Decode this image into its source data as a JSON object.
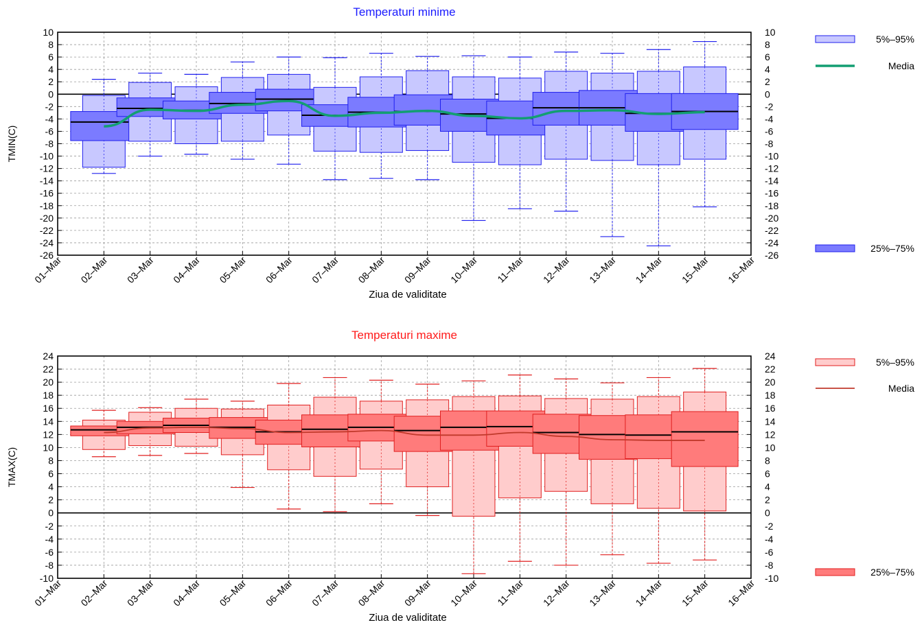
{
  "chart_data": [
    {
      "type": "box",
      "title": "Temperaturi minime",
      "title_color": "#1a1aff",
      "xlabel": "Ziua de validitate",
      "ylabel": "TMIN(C)",
      "ylim": [
        -26,
        10
      ],
      "ytick_step": 2,
      "grid": true,
      "x_tick_labels": [
        "01–Mar",
        "02–Mar",
        "03–Mar",
        "04–Mar",
        "05–Mar",
        "06–Mar",
        "07–Mar",
        "08–Mar",
        "09–Mar",
        "10–Mar",
        "11–Mar",
        "12–Mar",
        "13–Mar",
        "14–Mar",
        "15–Mar",
        "16–Mar"
      ],
      "boxes": [
        {
          "x": "02–Mar",
          "min": -12.8,
          "p5": -11.8,
          "p25": -7.5,
          "median": -4.5,
          "p75": -2.8,
          "p95": -0.2,
          "max": 2.4
        },
        {
          "x": "03–Mar",
          "min": -10.0,
          "p5": -7.6,
          "p25": -3.6,
          "median": -2.3,
          "p75": -0.6,
          "p95": 1.9,
          "max": 3.4
        },
        {
          "x": "04–Mar",
          "min": -9.7,
          "p5": -8.0,
          "p25": -4.0,
          "median": -2.6,
          "p75": -1.1,
          "p95": 1.2,
          "max": 3.2
        },
        {
          "x": "05–Mar",
          "min": -10.5,
          "p5": -7.6,
          "p25": -3.1,
          "median": -1.5,
          "p75": 0.3,
          "p95": 2.7,
          "max": 5.2
        },
        {
          "x": "06–Mar",
          "min": -11.3,
          "p5": -6.6,
          "p25": -2.7,
          "median": -0.8,
          "p75": 0.8,
          "p95": 3.2,
          "max": 6.0
        },
        {
          "x": "07–Mar",
          "min": -13.8,
          "p5": -9.2,
          "p25": -5.2,
          "median": -3.4,
          "p75": -1.7,
          "p95": 1.1,
          "max": 5.9
        },
        {
          "x": "08–Mar",
          "min": -13.6,
          "p5": -9.4,
          "p25": -5.3,
          "median": -2.9,
          "p75": -0.5,
          "p95": 2.8,
          "max": 6.6
        },
        {
          "x": "09–Mar",
          "min": -13.8,
          "p5": -9.1,
          "p25": -5.0,
          "median": -2.8,
          "p75": -0.1,
          "p95": 3.8,
          "max": 6.1
        },
        {
          "x": "10–Mar",
          "min": -20.4,
          "p5": -11.0,
          "p25": -6.0,
          "median": -3.2,
          "p75": -0.8,
          "p95": 2.8,
          "max": 6.2
        },
        {
          "x": "11–Mar",
          "min": -18.5,
          "p5": -11.4,
          "p25": -6.6,
          "median": -3.9,
          "p75": -1.1,
          "p95": 2.6,
          "max": 6.0
        },
        {
          "x": "12–Mar",
          "min": -18.9,
          "p5": -10.5,
          "p25": -5.0,
          "median": -2.2,
          "p75": 0.3,
          "p95": 3.7,
          "max": 6.8
        },
        {
          "x": "13–Mar",
          "min": -23.0,
          "p5": -10.7,
          "p25": -5.0,
          "median": -2.2,
          "p75": 0.6,
          "p95": 3.4,
          "max": 6.6
        },
        {
          "x": "14–Mar",
          "min": -24.5,
          "p5": -11.4,
          "p25": -6.0,
          "median": -3.1,
          "p75": 0.1,
          "p95": 3.7,
          "max": 7.2
        },
        {
          "x": "15–Mar",
          "min": -18.2,
          "p5": -10.5,
          "p25": -5.7,
          "median": -2.8,
          "p75": 0.1,
          "p95": 4.4,
          "max": 8.5
        }
      ],
      "mean_line": {
        "x": [
          "02–Mar",
          "03–Mar",
          "04–Mar",
          "05–Mar",
          "06–Mar",
          "07–Mar",
          "08–Mar",
          "09–Mar",
          "10–Mar",
          "11–Mar",
          "12–Mar",
          "13–Mar",
          "14–Mar",
          "15–Mar"
        ],
        "values": [
          -5.2,
          -2.5,
          -2.7,
          -1.7,
          -1.1,
          -3.5,
          -3.0,
          -2.7,
          -3.5,
          -3.9,
          -2.7,
          -2.6,
          -3.2,
          -2.9
        ]
      },
      "legend": {
        "outer": "5%–95%",
        "mean": "Media",
        "inner": "25%–75%"
      },
      "colors": {
        "inner_fill": "#7b7bff",
        "outer_fill": "#c8c8ff",
        "stroke": "#1f1fee",
        "mean": "#139e72",
        "median": "#000000"
      }
    },
    {
      "type": "box",
      "title": "Temperaturi maxime",
      "title_color": "#ff1a1a",
      "xlabel": "Ziua de validitate",
      "ylabel": "TMAX(C)",
      "ylim": [
        -10,
        24
      ],
      "ytick_step": 2,
      "grid": true,
      "x_tick_labels": [
        "01–Mar",
        "02–Mar",
        "03–Mar",
        "04–Mar",
        "05–Mar",
        "06–Mar",
        "07–Mar",
        "08–Mar",
        "09–Mar",
        "10–Mar",
        "11–Mar",
        "12–Mar",
        "13–Mar",
        "14–Mar",
        "15–Mar",
        "16–Mar"
      ],
      "boxes": [
        {
          "x": "02–Mar",
          "min": 8.6,
          "p5": 9.7,
          "p25": 11.8,
          "median": 12.7,
          "p75": 13.3,
          "p95": 14.2,
          "max": 15.7
        },
        {
          "x": "03–Mar",
          "min": 8.8,
          "p5": 10.3,
          "p25": 12.1,
          "median": 13.1,
          "p75": 14.0,
          "p95": 15.4,
          "max": 16.1
        },
        {
          "x": "04–Mar",
          "min": 9.1,
          "p5": 10.2,
          "p25": 12.3,
          "median": 13.4,
          "p75": 14.5,
          "p95": 16.0,
          "max": 17.4
        },
        {
          "x": "05–Mar",
          "min": 3.9,
          "p5": 8.9,
          "p25": 11.4,
          "median": 13.1,
          "p75": 14.6,
          "p95": 15.9,
          "max": 17.1
        },
        {
          "x": "06–Mar",
          "min": 0.6,
          "p5": 6.6,
          "p25": 10.5,
          "median": 12.4,
          "p75": 14.2,
          "p95": 16.5,
          "max": 19.8
        },
        {
          "x": "07–Mar",
          "min": 0.2,
          "p5": 5.6,
          "p25": 10.1,
          "median": 12.8,
          "p75": 15.0,
          "p95": 17.7,
          "max": 20.7
        },
        {
          "x": "08–Mar",
          "min": 1.4,
          "p5": 6.7,
          "p25": 11.0,
          "median": 13.1,
          "p75": 15.1,
          "p95": 17.1,
          "max": 20.3
        },
        {
          "x": "09–Mar",
          "min": -0.4,
          "p5": 4.0,
          "p25": 9.4,
          "median": 12.6,
          "p75": 14.8,
          "p95": 17.3,
          "max": 19.7
        },
        {
          "x": "10–Mar",
          "min": -9.3,
          "p5": -0.5,
          "p25": 9.6,
          "median": 13.1,
          "p75": 15.6,
          "p95": 17.8,
          "max": 20.2
        },
        {
          "x": "11–Mar",
          "min": -7.4,
          "p5": 2.3,
          "p25": 10.2,
          "median": 13.2,
          "p75": 15.6,
          "p95": 17.9,
          "max": 21.1
        },
        {
          "x": "12–Mar",
          "min": -8.0,
          "p5": 3.3,
          "p25": 9.1,
          "median": 12.3,
          "p75": 15.1,
          "p95": 17.5,
          "max": 20.5
        },
        {
          "x": "13–Mar",
          "min": -6.4,
          "p5": 1.4,
          "p25": 8.2,
          "median": 12.0,
          "p75": 14.9,
          "p95": 17.4,
          "max": 19.9
        },
        {
          "x": "14–Mar",
          "min": -7.7,
          "p5": 0.7,
          "p25": 8.3,
          "median": 11.9,
          "p75": 15.0,
          "p95": 17.8,
          "max": 20.7
        },
        {
          "x": "15–Mar",
          "min": -7.2,
          "p5": 0.3,
          "p25": 7.1,
          "median": 12.4,
          "p75": 15.5,
          "p95": 18.5,
          "max": 22.1
        }
      ],
      "mean_line": {
        "x": [
          "02–Mar",
          "03–Mar",
          "04–Mar",
          "05–Mar",
          "06–Mar",
          "07–Mar",
          "08–Mar",
          "09–Mar",
          "10–Mar",
          "11–Mar",
          "12–Mar",
          "13–Mar",
          "14–Mar",
          "15–Mar"
        ],
        "values": [
          12.3,
          13.0,
          13.1,
          12.9,
          12.3,
          12.4,
          12.6,
          11.9,
          11.9,
          12.3,
          11.7,
          11.2,
          11.1,
          11.1
        ]
      },
      "legend": {
        "outer": "5%–95%",
        "mean": "Media",
        "inner": "25%–75%"
      },
      "colors": {
        "inner_fill": "#ff7b7b",
        "outer_fill": "#ffcccc",
        "stroke": "#e01f1f",
        "mean": "#c0392b",
        "median": "#000000"
      }
    }
  ]
}
